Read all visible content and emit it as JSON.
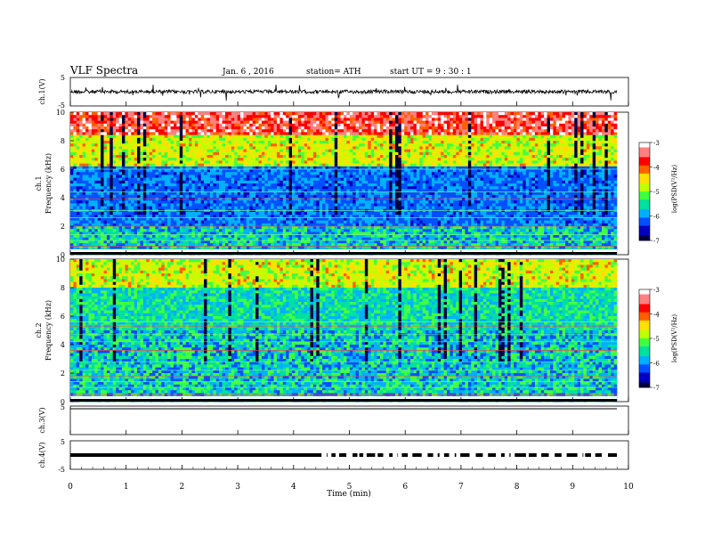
{
  "header": {
    "title": "VLF  Spectra",
    "date": "Jan. 6  , 2016",
    "station": "station= ATH",
    "start": "start  UT  =   9  : 30 : 1"
  },
  "chart_data": [
    {
      "type": "line",
      "ylabel": "ch.1(V)",
      "xlim": [
        0,
        10
      ],
      "ylim": [
        -5,
        5
      ],
      "yticks": [
        "5",
        "-5"
      ]
    },
    {
      "type": "heatmap",
      "channel": "ch.1",
      "ylabel": "Frequency  (kHz)",
      "xlim": [
        0,
        10
      ],
      "ylim": [
        0,
        10
      ],
      "yticks": [
        "0",
        "2",
        "4",
        "6",
        "8",
        "10"
      ],
      "colorbar": {
        "label": "log(PSD(V²/Hz)",
        "ticks": [
          "-3",
          "-4",
          "-5",
          "-6",
          "-7"
        ],
        "colors": [
          "#000040",
          "#0000c0",
          "#0050ff",
          "#00b0ff",
          "#00e0a0",
          "#40ff40",
          "#c0ff00",
          "#ffe000",
          "#ff6000",
          "#ff0000",
          "#ff8080",
          "#ffffff"
        ]
      }
    },
    {
      "type": "heatmap",
      "channel": "ch.2",
      "ylabel": "Frequency  (kHz)",
      "xlim": [
        0,
        10
      ],
      "ylim": [
        0,
        10
      ],
      "yticks": [
        "0",
        "2",
        "4",
        "6",
        "8",
        "10"
      ],
      "colorbar": {
        "label": "log(PSD(V²/Hz)",
        "ticks": [
          "-3",
          "-4",
          "-5",
          "-6",
          "-7"
        ]
      }
    },
    {
      "type": "line",
      "ylabel": "ch.3(V)",
      "xlim": [
        0,
        10
      ],
      "ylim": [
        -5,
        5
      ],
      "yticks": [
        "5"
      ]
    },
    {
      "type": "line",
      "ylabel": "ch.4(V)",
      "xlim": [
        0,
        10
      ],
      "ylim": [
        -5,
        5
      ],
      "yticks": [
        "5",
        "-5"
      ]
    }
  ],
  "xaxis": {
    "label": "Time  (min)",
    "ticks": [
      "0",
      "1",
      "2",
      "3",
      "4",
      "5",
      "6",
      "7",
      "8",
      "9",
      "10"
    ]
  }
}
